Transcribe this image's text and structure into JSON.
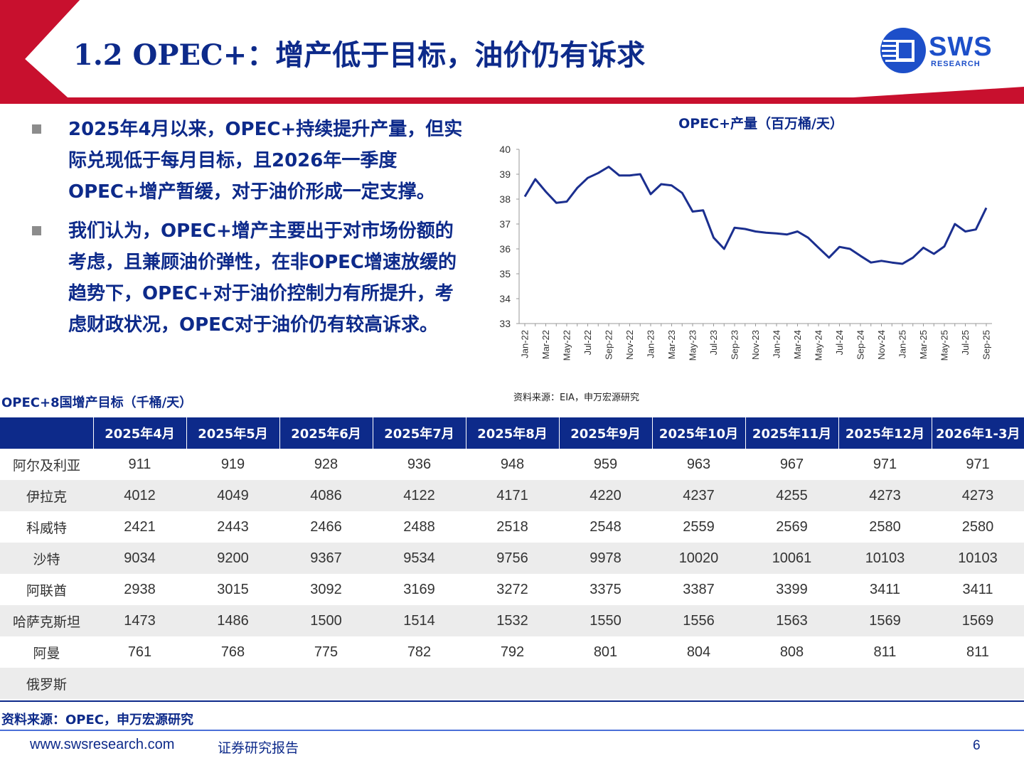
{
  "header": {
    "title": "1.2 OPEC+：增产低于目标，油价仍有诉求",
    "logo": {
      "name": "SWS",
      "sub": "RESEARCH"
    }
  },
  "bullets": [
    {
      "text": "2025年4月以来，OPEC+持续提升产量，但实际兑现低于每月目标，且2026年一季度OPEC+增产暂缓，对于油价形成一定支撑。"
    },
    {
      "text": "我们认为，OPEC+增产主要出于对市场份额的考虑，且兼顾油价弹性，在非OPEC增速放缓的趋势下，OPEC+对于油价控制力有所提升，考虑财政状况，OPEC对于油价仍有较高诉求。"
    }
  ],
  "chart_data": {
    "type": "line",
    "title": "OPEC+产量（百万桶/天）",
    "xlabel": "",
    "ylabel": "",
    "ylim": [
      33,
      40
    ],
    "yticks": [
      33,
      34,
      35,
      36,
      37,
      38,
      39,
      40
    ],
    "x": [
      "Jan-22",
      "Feb-22",
      "Mar-22",
      "Apr-22",
      "May-22",
      "Jun-22",
      "Jul-22",
      "Aug-22",
      "Sep-22",
      "Oct-22",
      "Nov-22",
      "Dec-22",
      "Jan-23",
      "Feb-23",
      "Mar-23",
      "Apr-23",
      "May-23",
      "Jun-23",
      "Jul-23",
      "Aug-23",
      "Sep-23",
      "Oct-23",
      "Nov-23",
      "Dec-23",
      "Jan-24",
      "Feb-24",
      "Mar-24",
      "Apr-24",
      "May-24",
      "Jun-24",
      "Jul-24",
      "Aug-24",
      "Sep-24",
      "Oct-24",
      "Nov-24",
      "Dec-24",
      "Jan-25",
      "Feb-25",
      "Mar-25",
      "Apr-25",
      "May-25",
      "Jun-25",
      "Jul-25",
      "Aug-25",
      "Sep-25"
    ],
    "tick_labels": [
      "Jan-22",
      "Mar-22",
      "May-22",
      "Jul-22",
      "Sep-22",
      "Nov-22",
      "Jan-23",
      "Mar-23",
      "May-23",
      "Jul-23",
      "Sep-23",
      "Nov-23",
      "Jan-24",
      "Mar-24",
      "May-24",
      "Jul-24",
      "Sep-24",
      "Nov-24",
      "Jan-25",
      "Mar-25",
      "May-25",
      "Jul-25",
      "Sep-25"
    ],
    "series": [
      {
        "values": [
          38.1,
          38.8,
          38.3,
          37.85,
          37.9,
          38.45,
          38.85,
          39.05,
          39.3,
          38.95,
          38.95,
          39.0,
          38.2,
          38.6,
          38.55,
          38.25,
          37.5,
          37.55,
          36.45,
          36.0,
          36.85,
          36.8,
          36.7,
          36.65,
          36.62,
          36.58,
          36.7,
          36.45,
          36.05,
          35.65,
          36.08,
          36.0,
          35.72,
          35.45,
          35.52,
          35.45,
          35.4,
          35.65,
          36.05,
          35.8,
          36.1,
          37.0,
          36.7,
          36.78,
          37.65
        ]
      }
    ],
    "color": "#1b2f8f",
    "source": "资料来源：EIA，申万宏源研究"
  },
  "table": {
    "title": "OPEC+8国增产目标（千桶/天）",
    "headers": [
      "",
      "2025年4月",
      "2025年5月",
      "2025年6月",
      "2025年7月",
      "2025年8月",
      "2025年9月",
      "2025年10月",
      "2025年11月",
      "2025年12月",
      "2026年1-3月"
    ],
    "rows": [
      {
        "country": "阿尔及利亚",
        "values": [
          "911",
          "919",
          "928",
          "936",
          "948",
          "959",
          "963",
          "967",
          "971",
          "971"
        ]
      },
      {
        "country": "伊拉克",
        "values": [
          "4012",
          "4049",
          "4086",
          "4122",
          "4171",
          "4220",
          "4237",
          "4255",
          "4273",
          "4273"
        ]
      },
      {
        "country": "科威特",
        "values": [
          "2421",
          "2443",
          "2466",
          "2488",
          "2518",
          "2548",
          "2559",
          "2569",
          "2580",
          "2580"
        ]
      },
      {
        "country": "沙特",
        "values": [
          "9034",
          "9200",
          "9367",
          "9534",
          "9756",
          "9978",
          "10020",
          "10061",
          "10103",
          "10103"
        ]
      },
      {
        "country": "阿联酋",
        "values": [
          "2938",
          "3015",
          "3092",
          "3169",
          "3272",
          "3375",
          "3387",
          "3399",
          "3411",
          "3411"
        ]
      },
      {
        "country": "哈萨克斯坦",
        "values": [
          "1473",
          "1486",
          "1500",
          "1514",
          "1532",
          "1550",
          "1556",
          "1563",
          "1569",
          "1569"
        ]
      },
      {
        "country": "阿曼",
        "values": [
          "761",
          "768",
          "775",
          "782",
          "792",
          "801",
          "804",
          "808",
          "811",
          "811"
        ]
      },
      {
        "country": "俄罗斯",
        "values": [
          "",
          "",
          "",
          "",
          "",
          "",
          "",
          "",
          "",
          ""
        ]
      }
    ],
    "source": "资料来源：OPEC，申万宏源研究"
  },
  "footer": {
    "url": "www.swsresearch.com",
    "label": "证券研究报告",
    "page": "6"
  },
  "colors": {
    "accent_red": "#c8102e",
    "brand_blue": "#0d2a8a",
    "logo_blue": "#1d4fc9"
  }
}
